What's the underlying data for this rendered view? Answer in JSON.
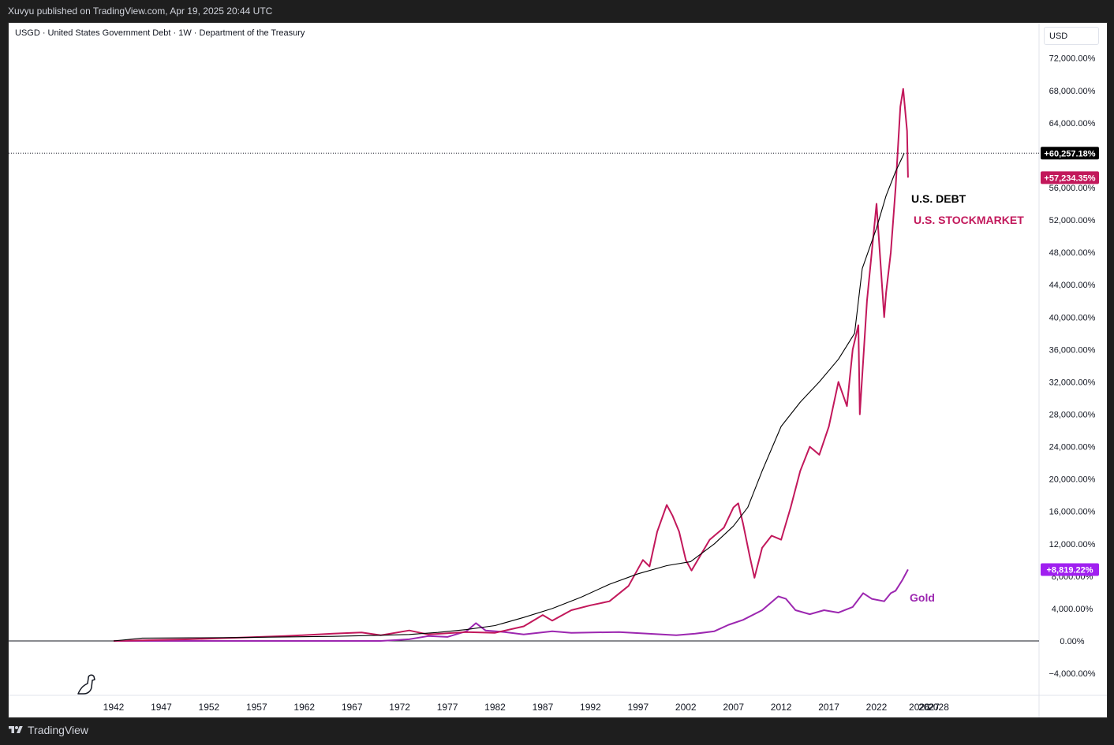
{
  "header": {
    "publisher": "Xuvyu published on TradingView.com, Apr 19, 2025 20:44 UTC"
  },
  "legend": {
    "symbol_line": "USGD · United States Government Debt · 1W · Department of the Treasury"
  },
  "scale_button": "USD",
  "footer": {
    "brand": "TradingView"
  },
  "colors": {
    "debt": "#000000",
    "stocks": "#c2185b",
    "gold": "#9c27b0",
    "debt_badge": "#000000",
    "stocks_badge": "#c2185b",
    "gold_badge": "#a020f0"
  },
  "icons": {
    "dino": "dinosaur-icon",
    "tv": "tradingview-logo-icon"
  },
  "chart_data": {
    "type": "line",
    "y_unit": "%",
    "ylim": [
      -6500,
      76000
    ],
    "xlim": [
      1940.5,
      2029.5
    ],
    "y_ticks": [
      {
        "value": 72000,
        "label": "72,000.00%"
      },
      {
        "value": 68000,
        "label": "68,000.00%"
      },
      {
        "value": 64000,
        "label": "64,000.00%"
      },
      {
        "value": 60000,
        "label": "60,000.00%"
      },
      {
        "value": 56000,
        "label": "56,000.00%"
      },
      {
        "value": 52000,
        "label": "52,000.00%"
      },
      {
        "value": 48000,
        "label": "48,000.00%"
      },
      {
        "value": 44000,
        "label": "44,000.00%"
      },
      {
        "value": 40000,
        "label": "40,000.00%"
      },
      {
        "value": 36000,
        "label": "36,000.00%"
      },
      {
        "value": 32000,
        "label": "32,000.00%"
      },
      {
        "value": 28000,
        "label": "28,000.00%"
      },
      {
        "value": 24000,
        "label": "24,000.00%"
      },
      {
        "value": 20000,
        "label": "20,000.00%"
      },
      {
        "value": 16000,
        "label": "16,000.00%"
      },
      {
        "value": 12000,
        "label": "12,000.00%"
      },
      {
        "value": 8000,
        "label": "8,000.00%"
      },
      {
        "value": 4000,
        "label": "4,000.00%"
      },
      {
        "value": 0,
        "label": "0.00%"
      },
      {
        "value": -4000,
        "label": "−4,000.00%"
      }
    ],
    "x_ticks": [
      {
        "value": 1942,
        "label": "1942"
      },
      {
        "value": 1947,
        "label": "1947"
      },
      {
        "value": 1952,
        "label": "1952"
      },
      {
        "value": 1957,
        "label": "1957"
      },
      {
        "value": 1962,
        "label": "1962"
      },
      {
        "value": 1967,
        "label": "1967"
      },
      {
        "value": 1972,
        "label": "1972"
      },
      {
        "value": 1977,
        "label": "1977"
      },
      {
        "value": 1982,
        "label": "1982"
      },
      {
        "value": 1987,
        "label": "1987"
      },
      {
        "value": 1992,
        "label": "1992"
      },
      {
        "value": 1997,
        "label": "1997"
      },
      {
        "value": 2002,
        "label": "2002"
      },
      {
        "value": 2007,
        "label": "2007"
      },
      {
        "value": 2012,
        "label": "2012"
      },
      {
        "value": 2017,
        "label": "2017"
      },
      {
        "value": 2022,
        "label": "2022"
      },
      {
        "value": 2026.5,
        "label": "2026"
      },
      {
        "value": 2027.5,
        "label": "2027"
      },
      {
        "value": 2028.5,
        "label": "2028"
      }
    ],
    "series": [
      {
        "name": "U.S. DEBT",
        "key": "debt",
        "badge": "+60,257.18%",
        "last_value": 60257.18,
        "points": [
          [
            1942,
            0
          ],
          [
            1945,
            350
          ],
          [
            1950,
            380
          ],
          [
            1955,
            420
          ],
          [
            1960,
            500
          ],
          [
            1965,
            560
          ],
          [
            1970,
            700
          ],
          [
            1973,
            800
          ],
          [
            1976,
            1050
          ],
          [
            1979,
            1400
          ],
          [
            1982,
            1900
          ],
          [
            1985,
            2900
          ],
          [
            1988,
            4000
          ],
          [
            1991,
            5400
          ],
          [
            1994,
            7000
          ],
          [
            1997,
            8300
          ],
          [
            2000,
            9300
          ],
          [
            2002.5,
            9800
          ],
          [
            2005,
            12000
          ],
          [
            2007,
            14200
          ],
          [
            2008.5,
            16500
          ],
          [
            2010,
            21000
          ],
          [
            2012,
            26500
          ],
          [
            2014,
            29500
          ],
          [
            2016,
            32000
          ],
          [
            2018,
            34800
          ],
          [
            2019.7,
            38000
          ],
          [
            2020.5,
            46000
          ],
          [
            2022,
            51000
          ],
          [
            2023,
            55000
          ],
          [
            2024,
            58000
          ],
          [
            2024.9,
            60257
          ]
        ]
      },
      {
        "name": "U.S. STOCKMARKET",
        "key": "stocks",
        "badge": "+57,234.35%",
        "last_value": 57234.35,
        "points": [
          [
            1942,
            0
          ],
          [
            1950,
            200
          ],
          [
            1955,
            400
          ],
          [
            1960,
            600
          ],
          [
            1965,
            900
          ],
          [
            1968,
            1050
          ],
          [
            1970,
            700
          ],
          [
            1973,
            1300
          ],
          [
            1975,
            800
          ],
          [
            1979,
            1100
          ],
          [
            1982,
            1000
          ],
          [
            1985,
            1800
          ],
          [
            1987,
            3200
          ],
          [
            1988,
            2500
          ],
          [
            1990,
            3800
          ],
          [
            1992,
            4400
          ],
          [
            1994,
            4900
          ],
          [
            1996,
            6800
          ],
          [
            1997.5,
            10000
          ],
          [
            1998.2,
            9200
          ],
          [
            1999,
            13500
          ],
          [
            2000,
            16800
          ],
          [
            2000.6,
            15500
          ],
          [
            2001.3,
            13500
          ],
          [
            2002,
            10000
          ],
          [
            2002.6,
            8700
          ],
          [
            2003.5,
            10500
          ],
          [
            2004.5,
            12500
          ],
          [
            2006,
            14000
          ],
          [
            2007,
            16500
          ],
          [
            2007.5,
            17000
          ],
          [
            2008,
            14500
          ],
          [
            2008.7,
            10500
          ],
          [
            2009.2,
            7800
          ],
          [
            2010,
            11500
          ],
          [
            2011,
            13000
          ],
          [
            2012,
            12500
          ],
          [
            2013,
            16500
          ],
          [
            2014,
            21000
          ],
          [
            2015,
            24000
          ],
          [
            2016,
            23000
          ],
          [
            2017,
            26500
          ],
          [
            2018,
            32000
          ],
          [
            2018.9,
            29000
          ],
          [
            2019.5,
            36000
          ],
          [
            2020.1,
            39000
          ],
          [
            2020.25,
            28000
          ],
          [
            2021,
            42000
          ],
          [
            2022,
            54000
          ],
          [
            2022.8,
            40000
          ],
          [
            2023,
            43000
          ],
          [
            2023.5,
            48000
          ],
          [
            2024,
            56000
          ],
          [
            2024.5,
            66000
          ],
          [
            2024.8,
            68200
          ],
          [
            2025.2,
            63000
          ],
          [
            2025.3,
            57234
          ]
        ]
      },
      {
        "name": "Gold",
        "key": "gold",
        "badge": "+8,819.22%",
        "last_value": 8819.22,
        "points": [
          [
            1942,
            0
          ],
          [
            1970,
            0
          ],
          [
            1973,
            200
          ],
          [
            1975,
            600
          ],
          [
            1977,
            500
          ],
          [
            1979,
            1200
          ],
          [
            1980,
            2200
          ],
          [
            1981,
            1300
          ],
          [
            1983,
            1100
          ],
          [
            1985,
            800
          ],
          [
            1988,
            1200
          ],
          [
            1990,
            1000
          ],
          [
            1995,
            1100
          ],
          [
            1998,
            900
          ],
          [
            2001,
            700
          ],
          [
            2003,
            900
          ],
          [
            2005,
            1200
          ],
          [
            2006.5,
            2000
          ],
          [
            2008,
            2600
          ],
          [
            2010,
            3800
          ],
          [
            2011.7,
            5500
          ],
          [
            2012.5,
            5200
          ],
          [
            2013.5,
            3800
          ],
          [
            2015,
            3300
          ],
          [
            2016.5,
            3800
          ],
          [
            2018,
            3500
          ],
          [
            2019.5,
            4200
          ],
          [
            2020.6,
            5900
          ],
          [
            2021.5,
            5200
          ],
          [
            2022.8,
            4900
          ],
          [
            2023.5,
            5900
          ],
          [
            2024,
            6200
          ],
          [
            2024.7,
            7500
          ],
          [
            2025.3,
            8819
          ]
        ]
      }
    ],
    "annotations": [
      {
        "text": "U.S. DEBT",
        "series": "debt"
      },
      {
        "text": "U.S. STOCKMARKET",
        "series": "stocks"
      },
      {
        "text": "Gold",
        "series": "gold"
      }
    ],
    "crosshair_value": 60257.18
  }
}
